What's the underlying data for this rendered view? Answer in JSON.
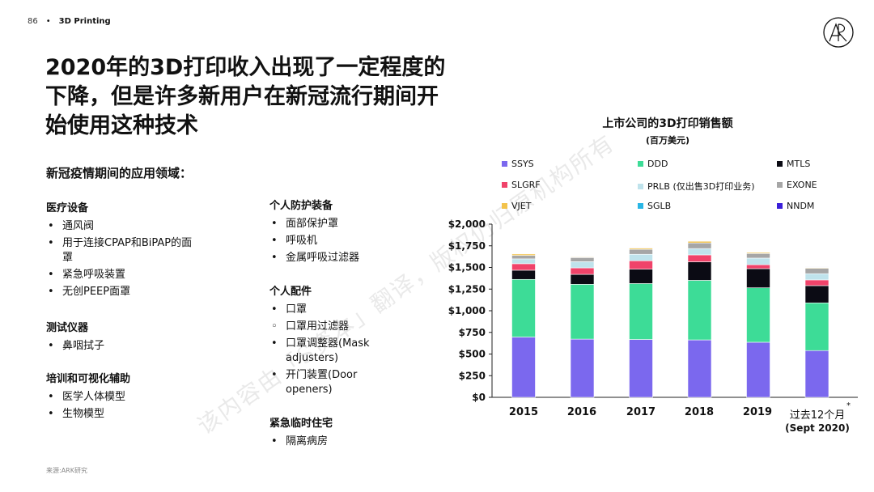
{
  "header": {
    "page_number": "86",
    "dot": "•",
    "section": "3D Printing"
  },
  "logo": {
    "icon": "ark-logo-icon"
  },
  "title": "2020年的3D打印收入出现了一定程度的下降，但是许多新用户在新冠流行期间开始使用这种技术",
  "subhead": "新冠疫情期间的应用领域：",
  "groups": [
    {
      "title": "医疗设备",
      "items": [
        "通风阀",
        "用于连接CPAP和BiPAP的面罩",
        "紧急呼吸装置",
        "无创PEEP面罩"
      ]
    },
    {
      "title": "测试仪器",
      "items": [
        "鼻咽拭子"
      ]
    },
    {
      "title": "培训和可视化辅助",
      "items": [
        "医学人体模型",
        "生物模型"
      ]
    },
    {
      "title": "个人防护装备",
      "items": [
        "面部保护罩",
        "呼吸机",
        "金属呼吸过滤器"
      ]
    },
    {
      "title": "个人配件",
      "items": [
        "口罩",
        "口罩用过滤器",
        "口罩调整器(Mask adjusters)",
        "开门装置(Door openers)"
      ]
    },
    {
      "title": "紧急临时住宅",
      "items": [
        "隔离病房"
      ]
    }
  ],
  "source": "来源:ARK研究",
  "watermark": "该内容由「S资本」翻译，版权仍归原机构所有",
  "chart_data": {
    "type": "bar",
    "stacked": true,
    "title": "上市公司的3D打印销售额",
    "subtitle": "(百万美元)",
    "categories": [
      "2015",
      "2016",
      "2017",
      "2018",
      "2019",
      "过去12个月"
    ],
    "category_note": "(Sept 2020)",
    "category_note_marker": "*",
    "ylim": [
      0,
      2000
    ],
    "yticks": [
      "$0",
      "$250",
      "$500",
      "$750",
      "$1,000",
      "$1,250",
      "$1,500",
      "$1,750",
      "$2,000"
    ],
    "ytick_values": [
      0,
      250,
      500,
      750,
      1000,
      1250,
      1500,
      1750,
      2000
    ],
    "grid": false,
    "legend_position": "top",
    "series": [
      {
        "name": "SSYS",
        "color": "#7B68EE",
        "values": [
          696,
          672,
          668,
          663,
          636,
          540
        ]
      },
      {
        "name": "DDD",
        "color": "#3DDC97",
        "values": [
          666,
          633,
          646,
          688,
          629,
          551
        ]
      },
      {
        "name": "MTLS",
        "color": "#0B0B14",
        "values": [
          106,
          115,
          166,
          214,
          221,
          199
        ]
      },
      {
        "name": "SLGRF",
        "color": "#F0436A",
        "values": [
          75,
          75,
          97,
          80,
          45,
          66
        ]
      },
      {
        "name": "PRLB (仅出售3D打印业务)",
        "color": "#BFE3EC",
        "values": [
          56,
          72,
          75,
          73,
          77,
          72
        ]
      },
      {
        "name": "EXONE",
        "color": "#A6A6A6",
        "values": [
          40,
          47,
          57,
          65,
          53,
          63
        ]
      },
      {
        "name": "VJET",
        "color": "#F3C34B",
        "values": [
          16,
          12,
          18,
          24,
          17,
          12
        ]
      },
      {
        "name": "SGLB",
        "color": "#29B6E5",
        "values": [
          0,
          1,
          2,
          1,
          1,
          1
        ]
      },
      {
        "name": "NNDM",
        "color": "#3B1FD9",
        "values": [
          0,
          1,
          1,
          2,
          1,
          2
        ]
      }
    ]
  }
}
